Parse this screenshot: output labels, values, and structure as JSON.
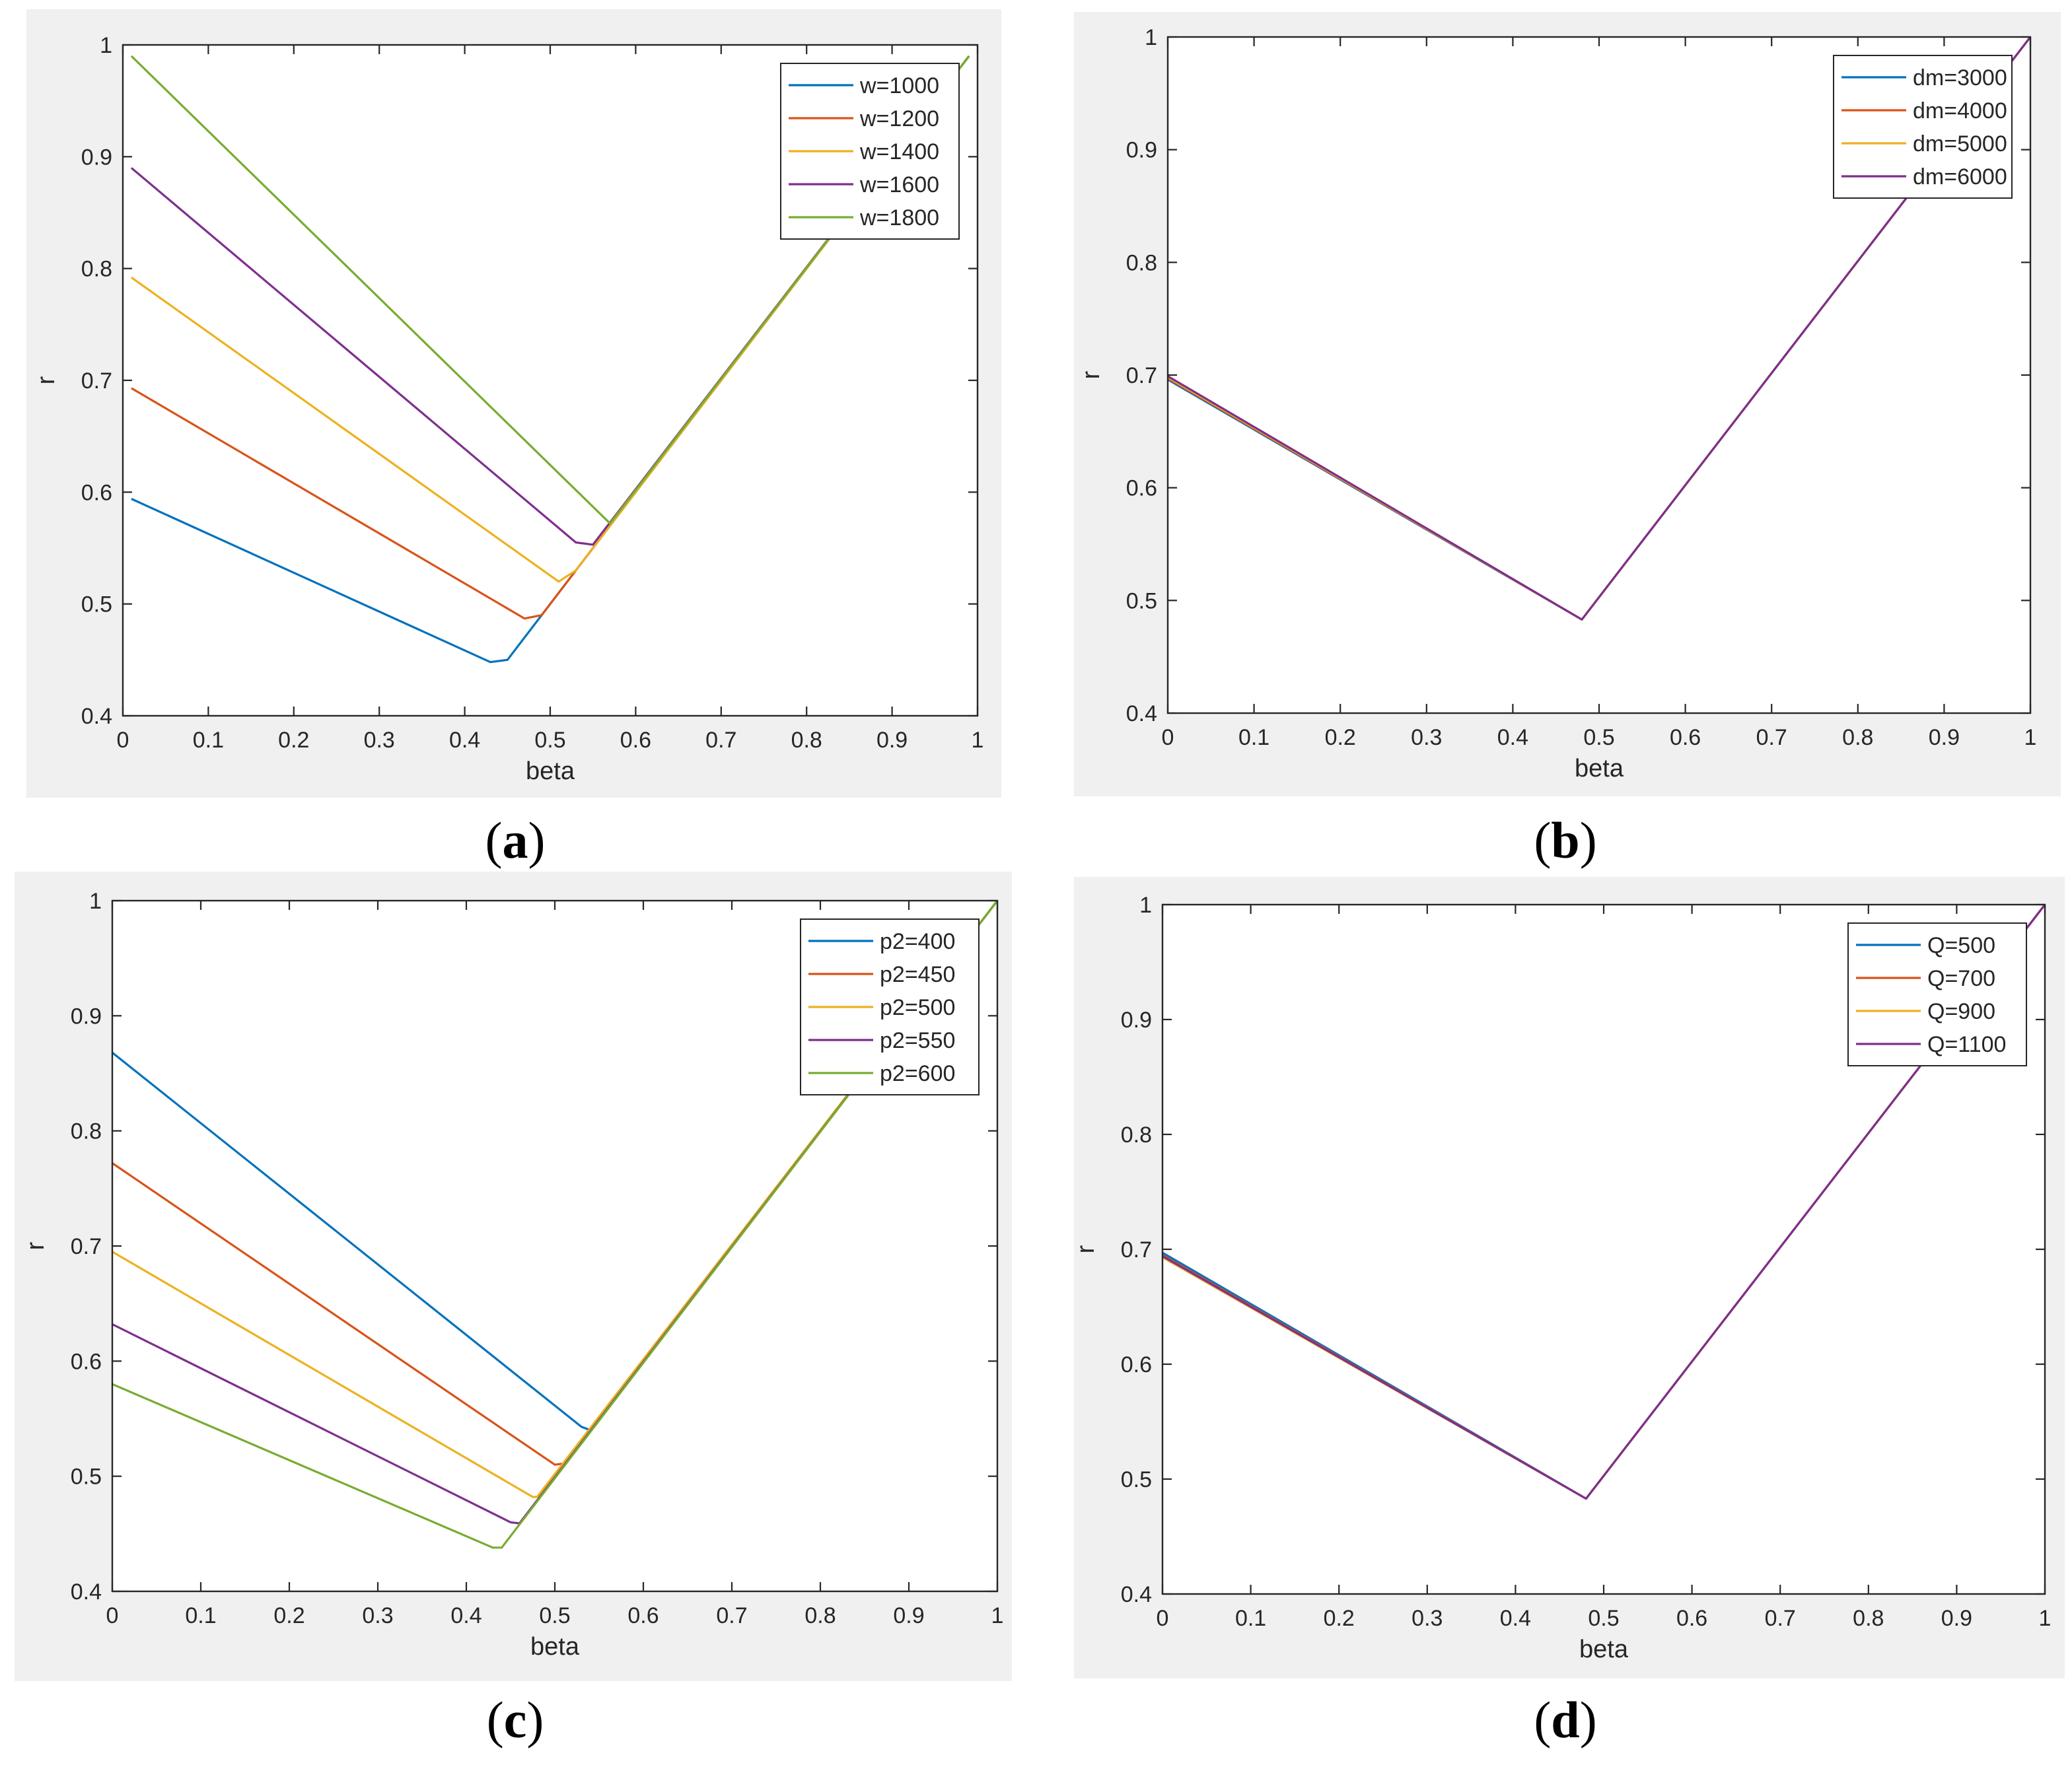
{
  "colors": [
    "#0072BD",
    "#D95319",
    "#EDB120",
    "#7E2F8E",
    "#77AC30"
  ],
  "chart_data": [
    {
      "type": "line",
      "panel_label": "a",
      "xlabel": "beta",
      "ylabel": "r",
      "xlim": [
        0,
        1
      ],
      "ylim": [
        0.4,
        1
      ],
      "xticks": [
        0,
        0.1,
        0.2,
        0.3,
        0.4,
        0.5,
        0.6,
        0.7,
        0.8,
        0.9,
        1
      ],
      "xtick_labels": [
        "0",
        "0.1",
        "0.2",
        "0.3",
        "0.4",
        "0.5",
        "0.6",
        "0.7",
        "0.8",
        "0.9",
        "1"
      ],
      "yticks": [
        0.4,
        0.5,
        0.6,
        0.7,
        0.8,
        0.9,
        1
      ],
      "ytick_labels": [
        "0.4",
        "0.5",
        "0.6",
        "0.7",
        "0.8",
        "0.9",
        "1"
      ],
      "legend_position": "top-right",
      "series": [
        {
          "name": "w=1000",
          "x": [
            0.01,
            0.43,
            0.45,
            0.99
          ],
          "y": [
            0.594,
            0.448,
            0.45,
            0.99
          ]
        },
        {
          "name": "w=1200",
          "x": [
            0.01,
            0.47,
            0.49,
            0.99
          ],
          "y": [
            0.693,
            0.487,
            0.49,
            0.99
          ]
        },
        {
          "name": "w=1400",
          "x": [
            0.01,
            0.51,
            0.53,
            0.99
          ],
          "y": [
            0.792,
            0.52,
            0.53,
            0.99
          ]
        },
        {
          "name": "w=1600",
          "x": [
            0.01,
            0.53,
            0.55,
            0.99
          ],
          "y": [
            0.89,
            0.555,
            0.553,
            0.99
          ]
        },
        {
          "name": "w=1800",
          "x": [
            0.01,
            0.57,
            0.99
          ],
          "y": [
            0.99,
            0.572,
            0.99
          ]
        }
      ]
    },
    {
      "type": "line",
      "panel_label": "b",
      "xlabel": "beta",
      "ylabel": "r",
      "xlim": [
        0,
        1
      ],
      "ylim": [
        0.4,
        1
      ],
      "xticks": [
        0,
        0.1,
        0.2,
        0.3,
        0.4,
        0.5,
        0.6,
        0.7,
        0.8,
        0.9,
        1
      ],
      "xtick_labels": [
        "0",
        "0.1",
        "0.2",
        "0.3",
        "0.4",
        "0.5",
        "0.6",
        "0.7",
        "0.8",
        "0.9",
        "1"
      ],
      "yticks": [
        0.4,
        0.5,
        0.6,
        0.7,
        0.8,
        0.9,
        1
      ],
      "ytick_labels": [
        "0.4",
        "0.5",
        "0.6",
        "0.7",
        "0.8",
        "0.9",
        "1"
      ],
      "legend_position": "top-right",
      "series": [
        {
          "name": "dm=3000",
          "x": [
            0,
            0.48,
            1
          ],
          "y": [
            0.696,
            0.483,
            1
          ]
        },
        {
          "name": "dm=4000",
          "x": [
            0,
            0.48,
            1
          ],
          "y": [
            0.697,
            0.483,
            1
          ]
        },
        {
          "name": "dm=5000",
          "x": [
            0,
            0.48,
            1
          ],
          "y": [
            0.698,
            0.483,
            1
          ]
        },
        {
          "name": "dm=6000",
          "x": [
            0,
            0.48,
            1
          ],
          "y": [
            0.699,
            0.483,
            1
          ]
        }
      ]
    },
    {
      "type": "line",
      "panel_label": "c",
      "xlabel": "beta",
      "ylabel": "r",
      "xlim": [
        0,
        1
      ],
      "ylim": [
        0.4,
        1
      ],
      "xticks": [
        0,
        0.1,
        0.2,
        0.3,
        0.4,
        0.5,
        0.6,
        0.7,
        0.8,
        0.9,
        1
      ],
      "xtick_labels": [
        "0",
        "0.1",
        "0.2",
        "0.3",
        "0.4",
        "0.5",
        "0.6",
        "0.7",
        "0.8",
        "0.9",
        "1"
      ],
      "yticks": [
        0.4,
        0.5,
        0.6,
        0.7,
        0.8,
        0.9,
        1
      ],
      "ytick_labels": [
        "0.4",
        "0.5",
        "0.6",
        "0.7",
        "0.8",
        "0.9",
        "1"
      ],
      "legend_position": "top-right",
      "series": [
        {
          "name": "p2=400",
          "x": [
            0,
            0.53,
            0.54,
            1
          ],
          "y": [
            0.868,
            0.543,
            0.54,
            1
          ]
        },
        {
          "name": "p2=450",
          "x": [
            0,
            0.5,
            0.51,
            1
          ],
          "y": [
            0.772,
            0.51,
            0.511,
            1
          ]
        },
        {
          "name": "p2=500",
          "x": [
            0,
            0.475,
            0.48,
            1
          ],
          "y": [
            0.695,
            0.482,
            0.482,
            1
          ]
        },
        {
          "name": "p2=550",
          "x": [
            0,
            0.45,
            0.46,
            1
          ],
          "y": [
            0.632,
            0.46,
            0.459,
            1
          ]
        },
        {
          "name": "p2=600",
          "x": [
            0,
            0.43,
            0.44,
            1
          ],
          "y": [
            0.58,
            0.438,
            0.438,
            1
          ]
        }
      ]
    },
    {
      "type": "line",
      "panel_label": "d",
      "xlabel": "beta",
      "ylabel": "r",
      "xlim": [
        0,
        1
      ],
      "ylim": [
        0.4,
        1
      ],
      "xticks": [
        0,
        0.1,
        0.2,
        0.3,
        0.4,
        0.5,
        0.6,
        0.7,
        0.8,
        0.9,
        1
      ],
      "xtick_labels": [
        "0",
        "0.1",
        "0.2",
        "0.3",
        "0.4",
        "0.5",
        "0.6",
        "0.7",
        "0.8",
        "0.9",
        "1"
      ],
      "yticks": [
        0.4,
        0.5,
        0.6,
        0.7,
        0.8,
        0.9,
        1
      ],
      "ytick_labels": [
        "0.4",
        "0.5",
        "0.6",
        "0.7",
        "0.8",
        "0.9",
        "1"
      ],
      "legend_position": "top-right",
      "series": [
        {
          "name": "Q=500",
          "x": [
            0,
            0.48,
            1
          ],
          "y": [
            0.697,
            0.483,
            1
          ]
        },
        {
          "name": "Q=700",
          "x": [
            0,
            0.48,
            1
          ],
          "y": [
            0.695,
            0.483,
            1
          ]
        },
        {
          "name": "Q=900",
          "x": [
            0,
            0.48,
            1
          ],
          "y": [
            0.693,
            0.483,
            1
          ]
        },
        {
          "name": "Q=1100",
          "x": [
            0,
            0.48,
            1
          ],
          "y": [
            0.694,
            0.483,
            1
          ]
        }
      ]
    }
  ]
}
